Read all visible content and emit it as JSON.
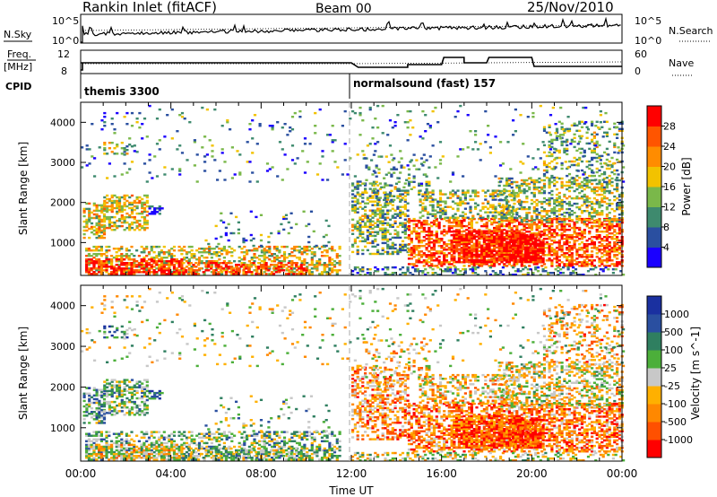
{
  "header": {
    "station": "Rankin Inlet (fitACF)",
    "beam": "Beam 00",
    "date": "25/Nov/2010"
  },
  "labels": {
    "nsky": "N.Sky",
    "nsearch": "N.Search",
    "freq_top": "Freq.",
    "freq_unit": "[MHz]",
    "cpid": "CPID",
    "nave": "Nave",
    "sky_tick_hi": "10^5",
    "sky_tick_lo": "10^0",
    "search_tick_hi": "10^5",
    "search_tick_lo": "10^0",
    "freq_tick_hi": "12",
    "freq_tick_lo": "8",
    "nave_tick_hi": "60",
    "nave_tick_lo": "0",
    "cpid_left": "themis 3300",
    "cpid_right": "normalsound (fast) 157"
  },
  "colors": {
    "power": [
      "#1a00ff",
      "#2a4fa0",
      "#3e8a6e",
      "#7ab84a",
      "#f2c200",
      "#ff8c00",
      "#ff5500",
      "#ff0000"
    ],
    "velocity": [
      "#ff0000",
      "#ff5000",
      "#ff8800",
      "#ffb000",
      "#c8c8c8",
      "#4caf3a",
      "#2f7f60",
      "#2a4fa0",
      "#1a30a0"
    ]
  },
  "chart_data": [
    {
      "type": "heatmap",
      "name": "power",
      "xlabel": "",
      "ylabel": "Slant Range [km]",
      "yticks": [
        "1000",
        "2000",
        "3000",
        "4000"
      ],
      "xticks": [
        "00:00",
        "04:00",
        "08:00",
        "12:00",
        "16:00",
        "20:00",
        "00:00"
      ],
      "ylim": [
        180,
        4500
      ],
      "colorbar_label": "Power [dB]",
      "colorbar_ticks": [
        "4",
        "8",
        "12",
        "16",
        "20",
        "24",
        "28"
      ],
      "vertical_marker_hour": 12
    },
    {
      "type": "heatmap",
      "name": "velocity",
      "xlabel": "Time UT",
      "ylabel": "Slant Range [km]",
      "yticks": [
        "1000",
        "2000",
        "3000",
        "4000"
      ],
      "xticks": [
        "00:00",
        "04:00",
        "08:00",
        "12:00",
        "16:00",
        "20:00",
        "00:00"
      ],
      "ylim": [
        180,
        4500
      ],
      "colorbar_label": "Velocity [m s^-1]",
      "colorbar_ticks": [
        "1000",
        "500",
        "100",
        "25",
        "-25",
        "-100",
        "-500",
        "-1000"
      ],
      "vertical_marker_hour": 12
    }
  ]
}
